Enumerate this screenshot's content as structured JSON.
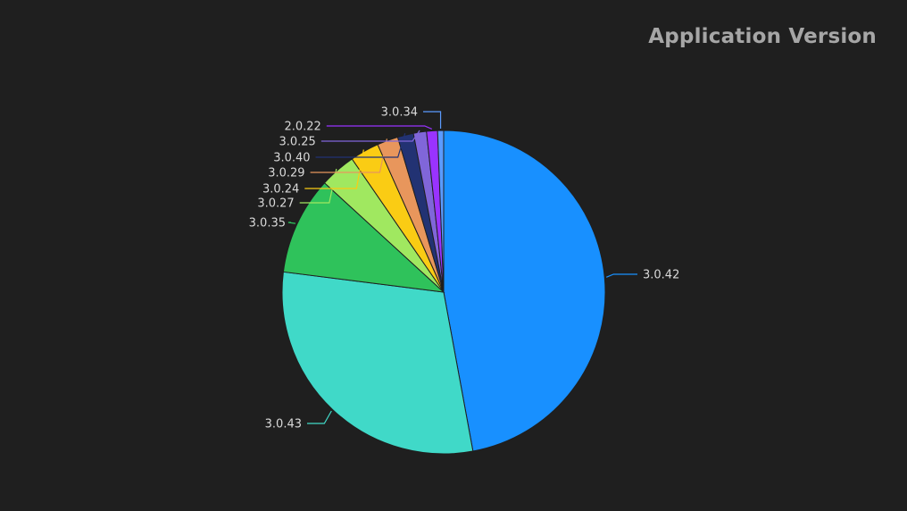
{
  "chart_data": {
    "type": "pie",
    "title": "Application Version",
    "slices": [
      {
        "label": "3.0.42",
        "value": 47.1,
        "color": "#1890ff"
      },
      {
        "label": "3.0.43",
        "value": 29.9,
        "color": "#40d9c8"
      },
      {
        "label": "3.0.35",
        "value": 9.8,
        "color": "#2fc25b"
      },
      {
        "label": "3.0.27",
        "value": 3.6,
        "color": "#a0e860"
      },
      {
        "label": "3.0.24",
        "value": 2.9,
        "color": "#facc14"
      },
      {
        "label": "3.0.29",
        "value": 2.1,
        "color": "#e8965c"
      },
      {
        "label": "3.0.40",
        "value": 1.6,
        "color": "#223273"
      },
      {
        "label": "3.0.25",
        "value": 1.3,
        "color": "#8066d9"
      },
      {
        "label": "2.0.22",
        "value": 1.1,
        "color": "#9933ff"
      },
      {
        "label": "3.0.34",
        "value": 0.6,
        "color": "#5b9bff"
      }
    ]
  }
}
